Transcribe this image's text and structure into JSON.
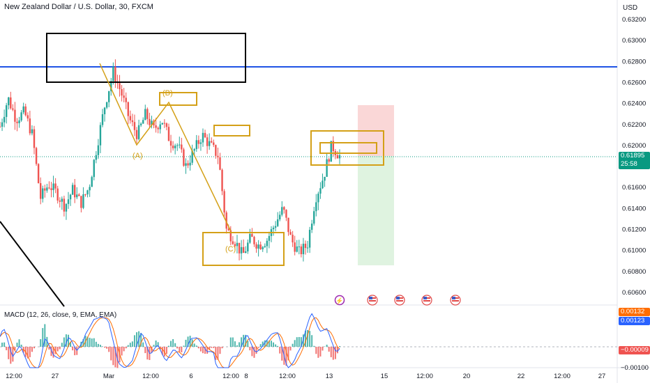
{
  "header": {
    "title": "New Zealand Dollar / U.S. Dollar, 30, FXCM",
    "currency": "USD"
  },
  "macd": {
    "label": "MACD (12, 26, close, 9, EMA, EMA)",
    "values": [
      "0.00132",
      "0.00123",
      "−0.00009",
      "−0.00100"
    ],
    "colors": {
      "macd": "#2962ff",
      "signal": "#ff6d00",
      "hist_up": "#26a69a",
      "hist_down": "#ef5350"
    }
  },
  "price_tag": {
    "price": "0.61895",
    "countdown": "25:58",
    "color": "#089981"
  },
  "waves": {
    "a": "(A)",
    "b": "(B)",
    "c": "(C)"
  },
  "colors": {
    "resistance_line": "#1e53e5",
    "annotation": "#d4a017",
    "box": "#000000",
    "stop_zone": "#f8c9c9",
    "target_zone": "#d4efd6"
  },
  "events": [
    {
      "icon": "lightning-icon",
      "label": "⚡"
    },
    {
      "icon": "us-flag-icon",
      "label": ""
    },
    {
      "icon": "us-flag-icon",
      "label": ""
    },
    {
      "icon": "us-flag-icon",
      "label": ""
    },
    {
      "icon": "us-flag-icon",
      "label": ""
    }
  ],
  "chart_data": {
    "type": "candlestick",
    "instrument": "New Zealand Dollar / U.S. Dollar",
    "timeframe": "30",
    "source": "FXCM",
    "y_axis_ticks": [
      "0.63200",
      "0.63000",
      "0.62800",
      "0.62600",
      "0.62400",
      "0.62200",
      "0.62000",
      "0.61800",
      "0.61600",
      "0.61400",
      "0.61200",
      "0.61000",
      "0.60800",
      "0.60600"
    ],
    "ylim": [
      0.6052,
      0.6328
    ],
    "x_axis_ticks": [
      "12:00",
      "27",
      "Mar",
      "12:00",
      "6",
      "12:00",
      "8",
      "12:00",
      "13",
      "15",
      "12:00",
      "20",
      "22",
      "12:00",
      "27"
    ],
    "current_price": 0.61895,
    "horizontal_line": 0.6275,
    "close_series": [
      {
        "x": 0.0,
        "y": 0.6218
      },
      {
        "x": 0.5,
        "y": 0.6245
      },
      {
        "x": 1.0,
        "y": 0.6225
      },
      {
        "x": 1.5,
        "y": 0.6232
      },
      {
        "x": 2.0,
        "y": 0.621
      },
      {
        "x": 2.5,
        "y": 0.615
      },
      {
        "x": 3.0,
        "y": 0.6163
      },
      {
        "x": 3.5,
        "y": 0.6155
      },
      {
        "x": 4.0,
        "y": 0.6142
      },
      {
        "x": 4.5,
        "y": 0.6158
      },
      {
        "x": 5.0,
        "y": 0.6145
      },
      {
        "x": 5.5,
        "y": 0.616
      },
      {
        "x": 6.0,
        "y": 0.62
      },
      {
        "x": 6.5,
        "y": 0.624
      },
      {
        "x": 7.0,
        "y": 0.627
      },
      {
        "x": 7.5,
        "y": 0.625
      },
      {
        "x": 8.0,
        "y": 0.6225
      },
      {
        "x": 8.5,
        "y": 0.621
      },
      {
        "x": 9.0,
        "y": 0.623
      },
      {
        "x": 9.5,
        "y": 0.6215
      },
      {
        "x": 10.0,
        "y": 0.6225
      },
      {
        "x": 10.5,
        "y": 0.6205
      },
      {
        "x": 11.0,
        "y": 0.62
      },
      {
        "x": 11.5,
        "y": 0.618
      },
      {
        "x": 12.0,
        "y": 0.6195
      },
      {
        "x": 12.5,
        "y": 0.621
      },
      {
        "x": 13.0,
        "y": 0.62
      },
      {
        "x": 13.5,
        "y": 0.619
      },
      {
        "x": 14.0,
        "y": 0.612
      },
      {
        "x": 14.5,
        "y": 0.611
      },
      {
        "x": 15.0,
        "y": 0.6095
      },
      {
        "x": 15.5,
        "y": 0.6112
      },
      {
        "x": 16.0,
        "y": 0.6105
      },
      {
        "x": 16.5,
        "y": 0.611
      },
      {
        "x": 17.0,
        "y": 0.6125
      },
      {
        "x": 17.5,
        "y": 0.614
      },
      {
        "x": 18.0,
        "y": 0.611
      },
      {
        "x": 18.5,
        "y": 0.6098
      },
      {
        "x": 19.0,
        "y": 0.6105
      },
      {
        "x": 19.5,
        "y": 0.615
      },
      {
        "x": 20.0,
        "y": 0.617
      },
      {
        "x": 20.5,
        "y": 0.62
      },
      {
        "x": 21.0,
        "y": 0.619
      }
    ],
    "annotations": {
      "wave_labels": [
        "(A)",
        "(B)",
        "(C)"
      ],
      "boxes": [
        "supply zone near 0.6275",
        "(B) zone",
        "mid zone",
        "(C) zone",
        "entry zone"
      ],
      "position": {
        "entry": 0.61895,
        "stop": 0.6238,
        "target": 0.6088
      }
    }
  }
}
